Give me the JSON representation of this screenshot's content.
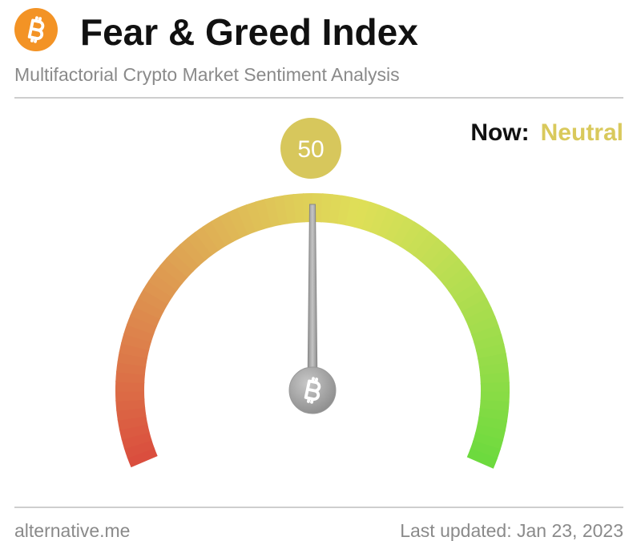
{
  "chart_data": {
    "type": "gauge",
    "title": "Fear & Greed Index",
    "subtitle": "Multifactorial Crypto Market Sentiment Analysis",
    "status_label": "Now:",
    "status": "Neutral",
    "value": 50,
    "ylim": [
      0,
      100
    ],
    "source": "alternative.me",
    "updated": "Last updated: Jan 23, 2023"
  }
}
